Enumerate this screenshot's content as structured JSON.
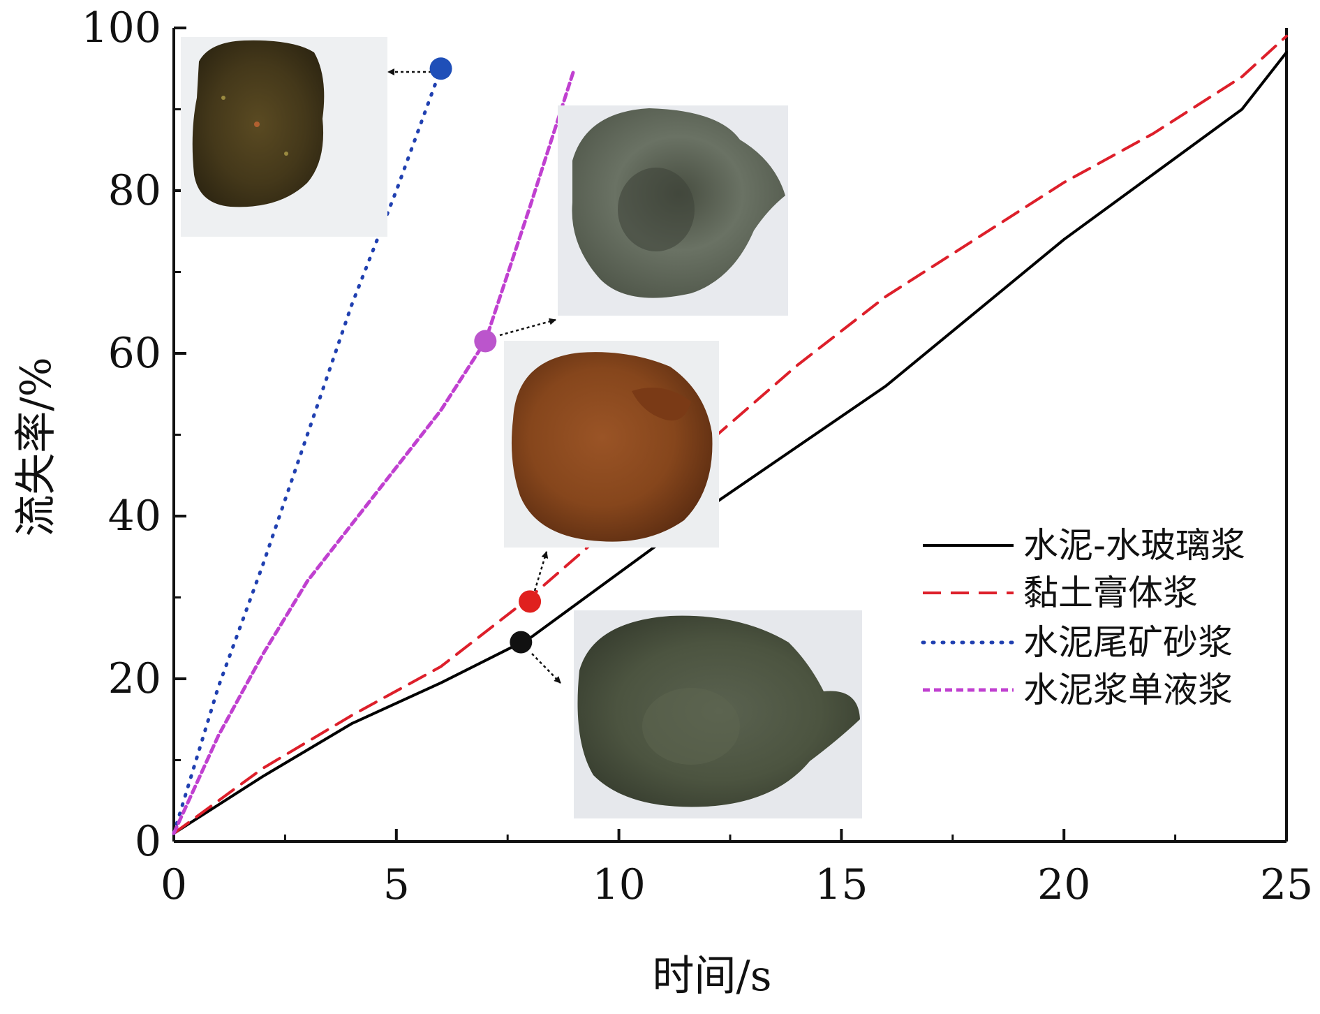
{
  "chart_data": {
    "type": "line",
    "xlabel": "时间/s",
    "ylabel": "流失率/%",
    "xlim": [
      0,
      25
    ],
    "ylim": [
      0,
      100
    ],
    "xticks": [
      0,
      5,
      10,
      15,
      20,
      25
    ],
    "yticks": [
      0,
      20,
      40,
      60,
      80,
      100
    ],
    "grid": false,
    "legend_position": "lower-right",
    "series": [
      {
        "name": "水泥-水玻璃浆",
        "style": "solid",
        "color": "#000000",
        "x": [
          0,
          2,
          4,
          6,
          8,
          10,
          12,
          14,
          16,
          18,
          20,
          22,
          24,
          25
        ],
        "y": [
          1,
          8,
          14.5,
          19.5,
          25,
          33,
          41,
          48.5,
          56,
          65,
          74,
          82,
          90,
          97
        ]
      },
      {
        "name": "黏土膏体浆",
        "style": "dashed",
        "color": "#dd1f2a",
        "x": [
          0,
          2,
          4,
          6,
          8,
          10,
          12,
          14,
          16,
          18,
          20,
          22,
          24,
          25
        ],
        "y": [
          1,
          9,
          15.5,
          21.5,
          30,
          39.5,
          49,
          58.5,
          67,
          74,
          81,
          87,
          94,
          99
        ]
      },
      {
        "name": "水泥尾矿砂浆",
        "style": "dotted",
        "color": "#1f3fb0",
        "x": [
          0,
          1,
          2,
          3,
          4,
          5,
          6
        ],
        "y": [
          1,
          19,
          34,
          50,
          66,
          80,
          95
        ]
      },
      {
        "name": "水泥浆单液浆",
        "style": "short-dash",
        "color": "#c040d0",
        "x": [
          0,
          1,
          2,
          3,
          4,
          5,
          6,
          7,
          8,
          9
        ],
        "y": [
          1,
          13,
          23,
          32,
          39,
          46,
          53,
          61.5,
          78,
          95
        ]
      }
    ],
    "markers": [
      {
        "series": "水泥尾矿砂浆",
        "x": 6,
        "y": 95,
        "color": "#1f4fb8"
      },
      {
        "series": "水泥浆单液浆",
        "x": 7,
        "y": 61.5,
        "color": "#bb55cc"
      },
      {
        "series": "黏土膏体浆",
        "x": 8,
        "y": 29.5,
        "color": "#e0201e"
      },
      {
        "series": "水泥-水玻璃浆",
        "x": 7.8,
        "y": 24.5,
        "color": "#111111"
      }
    ]
  },
  "photos": [
    {
      "name": "photo-tailings-sand-grout",
      "fill": "#4a3c1c"
    },
    {
      "name": "photo-cement-single-grout",
      "fill": "#5d6553"
    },
    {
      "name": "photo-clay-paste-grout",
      "fill": "#8a4a20"
    },
    {
      "name": "photo-cement-silicate-grout",
      "fill": "#4c5440"
    }
  ]
}
